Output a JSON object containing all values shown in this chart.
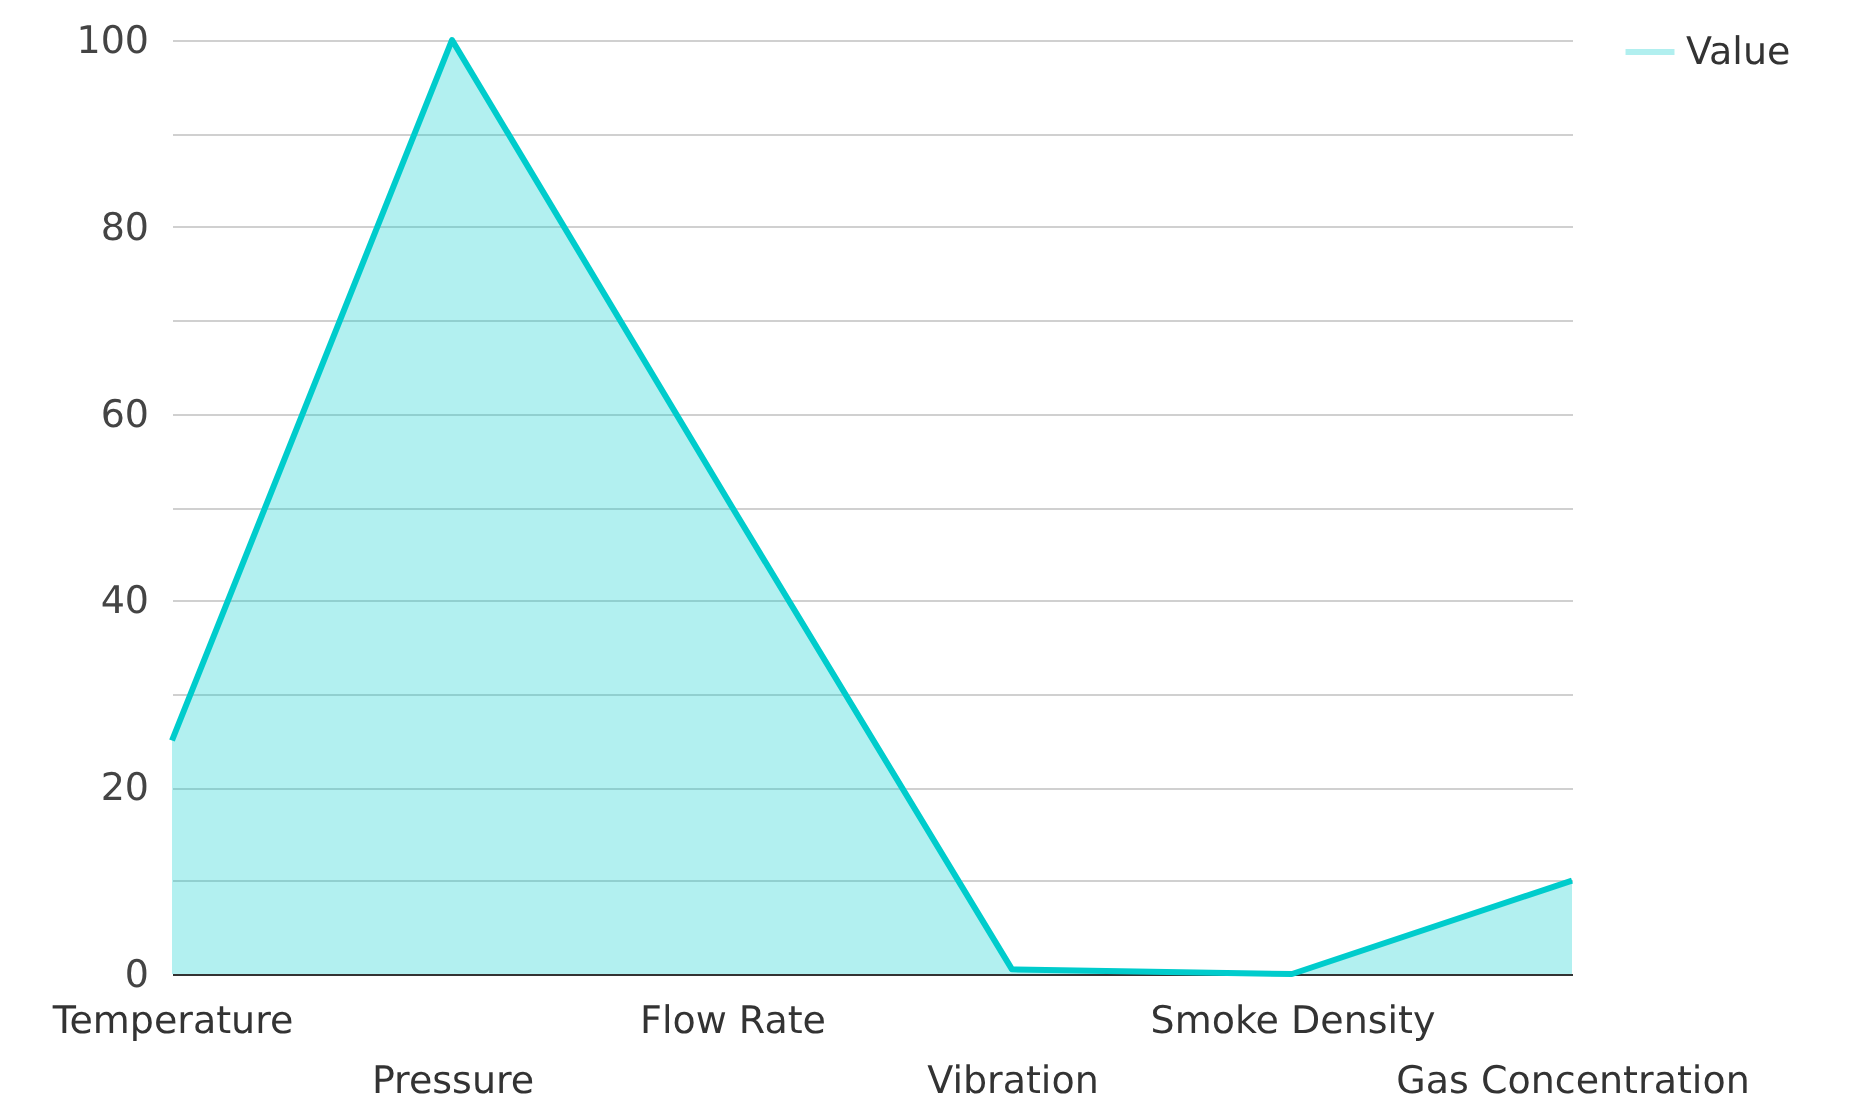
{
  "chart_data": {
    "type": "area",
    "categories": [
      "Temperature",
      "Pressure",
      "Flow Rate",
      "Vibration",
      "Smoke Density",
      "Gas Concentration"
    ],
    "series": [
      {
        "name": "Value",
        "color": "#00cccc",
        "values": [
          25,
          100,
          50,
          0.5,
          0,
          10
        ]
      }
    ],
    "ylim": [
      0,
      100
    ],
    "yticks": [
      0,
      {
        "value": 10,
        "label": null
      },
      20,
      {
        "value": 30,
        "label": null
      },
      40,
      {
        "value": 50,
        "label": null
      },
      60,
      {
        "value": 70,
        "label": null
      },
      80,
      {
        "value": 90,
        "label": null
      },
      100
    ],
    "grid": "y",
    "legend": "top right",
    "marker": "none"
  }
}
